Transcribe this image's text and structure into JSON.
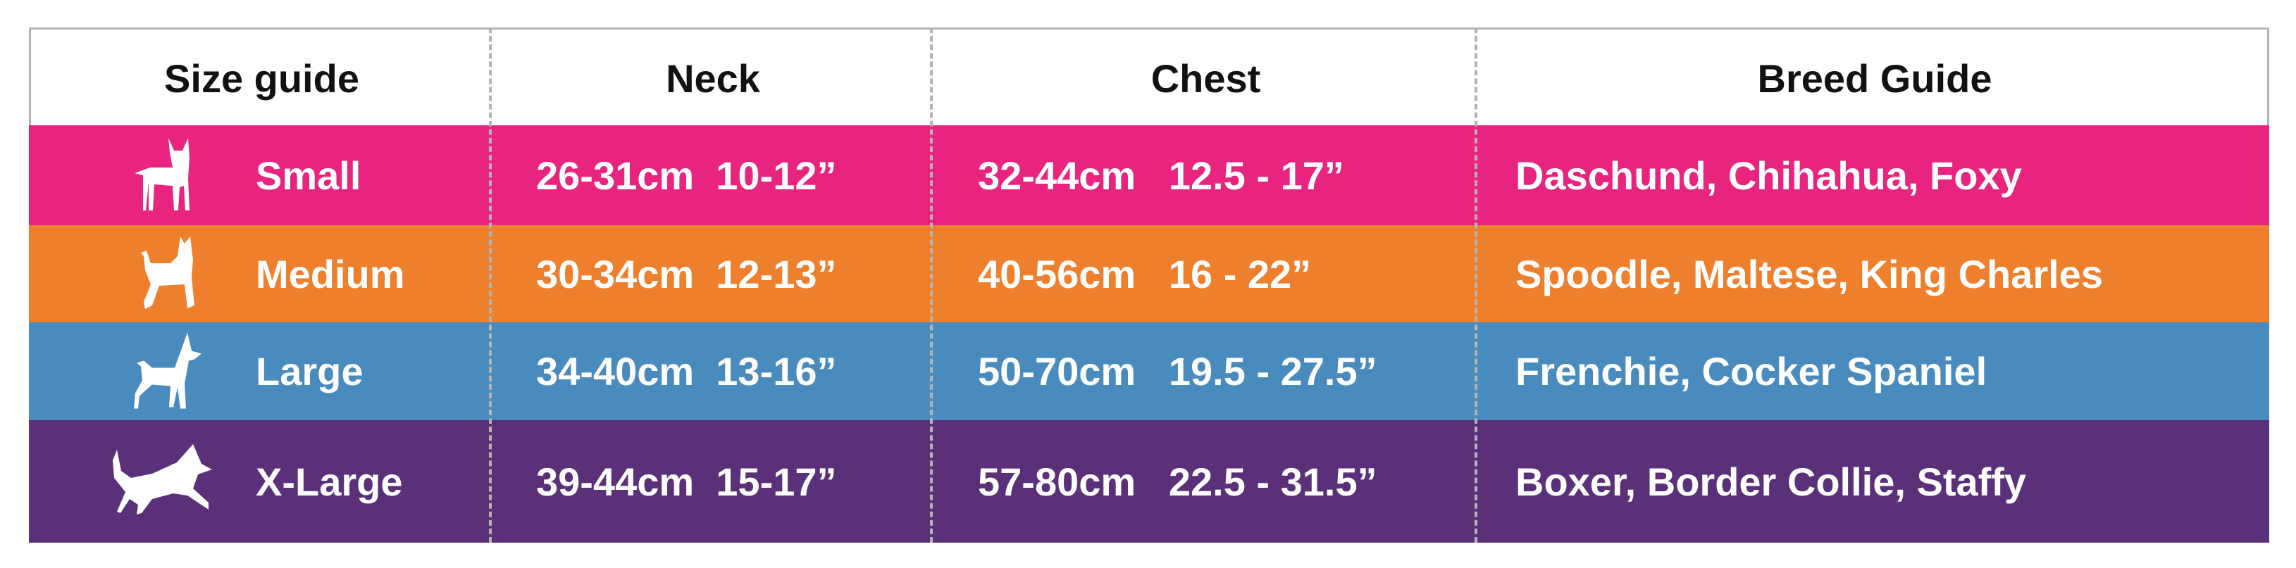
{
  "colors": {
    "small": "#E8247F",
    "medium": "#EE7F2D",
    "large": "#4A8BBE",
    "xlarge": "#5A3078",
    "border": "#b3b3b3"
  },
  "headers": [
    "Size guide",
    "Neck",
    "Chest",
    "Breed Guide"
  ],
  "rows": [
    {
      "size": "Small",
      "icon": "small-dog-icon",
      "neck": "26-31cm  10-12”",
      "chest": "32-44cm   12.5 - 17”",
      "breeds": "Daschund, Chihahua, Foxy"
    },
    {
      "size": "Medium",
      "icon": "medium-dog-icon",
      "neck": "30-34cm  12-13”",
      "chest": "40-56cm   16 - 22”",
      "breeds": "Spoodle, Maltese, King Charles"
    },
    {
      "size": "Large",
      "icon": "large-dog-icon",
      "neck": "34-40cm  13-16”",
      "chest": "50-70cm   19.5 - 27.5”",
      "breeds": "Frenchie, Cocker Spaniel"
    },
    {
      "size": "X-Large",
      "icon": "xlarge-dog-icon",
      "neck": "39-44cm  15-17”",
      "chest": "57-80cm   22.5 - 31.5”",
      "breeds": "Boxer, Border Collie, Staffy"
    }
  ]
}
